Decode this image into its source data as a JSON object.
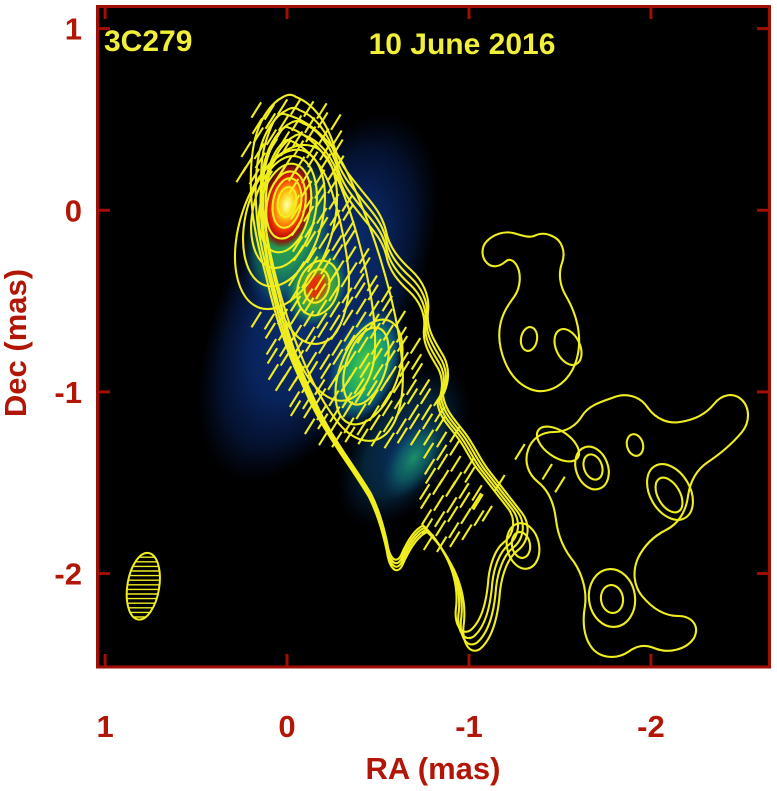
{
  "figure": {
    "source_name": "3C279",
    "epoch_label": "10 June 2016"
  },
  "axes": {
    "x": {
      "label": "RA (mas)",
      "tick_labels": [
        "1",
        "0",
        "-1",
        "-2"
      ],
      "tick_values": [
        1,
        0,
        -1,
        -2
      ],
      "lim": [
        1.05,
        -2.66
      ]
    },
    "y": {
      "label": "Dec (mas)",
      "tick_labels": [
        "1",
        "0",
        "-1",
        "-2"
      ],
      "tick_values": [
        1,
        0,
        -1,
        -2
      ],
      "lim": [
        1.13,
        -2.52
      ]
    }
  },
  "colors": {
    "page_background": "#ffffff",
    "plot_background": "#000000",
    "frame": "#a00e04",
    "axis_text": "#b21607",
    "annotation_text": "#f2ef38",
    "contour": "#f1ee1f",
    "colormap_peak": "#fff9a8",
    "colormap_high": "#ff7e06",
    "colormap_red": "#d31505",
    "colormap_green": "#2eb24a",
    "colormap_teal": "#14927c",
    "colormap_low": "#0c2e75"
  },
  "chart_data": {
    "type": "heatmap",
    "subtype": "VLBI total-intensity contour map with color intensity scale and linear-polarization EVPA ticks",
    "title": "3C279 — 10 June 2016",
    "xlabel": "RA (mas)",
    "ylabel": "Dec (mas)",
    "xlim": [
      1.05,
      -2.66
    ],
    "ylim": [
      1.13,
      -2.52
    ],
    "x_ticks": [
      1,
      0,
      -1,
      -2
    ],
    "y_ticks": [
      1,
      0,
      -1,
      -2
    ],
    "grid": false,
    "contours": {
      "color": "#f1ee1f",
      "n_levels": 14,
      "spacing": "logarithmic",
      "description": "Nested total-intensity contours; jet extends from core toward south-west (lower right in RA)"
    },
    "components": [
      {
        "id": "core",
        "ra": 0.0,
        "dec": 0.03,
        "appearance": "brightest peak, yellow-white core with orange-red halo"
      },
      {
        "id": "C1",
        "ra": -0.16,
        "dec": -0.42,
        "appearance": "secondary red knot ringed by green"
      },
      {
        "id": "C2",
        "ra": -0.43,
        "dec": -0.86,
        "appearance": "extended green-teal knot in navy envelope"
      }
    ],
    "jet_knots": [
      {
        "ra": -1.46,
        "dec": -0.38
      },
      {
        "ra": -1.33,
        "dec": -0.71
      },
      {
        "ra": -1.54,
        "dec": -0.75
      },
      {
        "ra": -1.68,
        "dec": -1.41
      },
      {
        "ra": -1.29,
        "dec": -1.84
      },
      {
        "ra": -1.91,
        "dec": -1.29
      },
      {
        "ra": -2.1,
        "dec": -1.56
      },
      {
        "ra": -1.79,
        "dec": -2.13
      }
    ],
    "polarization": {
      "tick_color": "#f1ee1f",
      "angle_deg": -58,
      "tick_len_mas": 0.1,
      "spacing_mas": 0.072,
      "band": [
        {
          "ra": -0.03,
          "dec": 0.4,
          "halfwidth_mas": 0.26
        },
        {
          "ra": -0.02,
          "dec": 0.03,
          "halfwidth_mas": 0.31
        },
        {
          "ra": -0.1,
          "dec": -0.37,
          "halfwidth_mas": 0.35
        },
        {
          "ra": -0.31,
          "dec": -0.81,
          "halfwidth_mas": 0.4
        },
        {
          "ra": -0.59,
          "dec": -1.25,
          "halfwidth_mas": 0.33
        },
        {
          "ra": -0.85,
          "dec": -1.61,
          "halfwidth_mas": 0.23
        }
      ],
      "extra_ticks": [
        {
          "ra": -1.04,
          "dec": -1.6
        },
        {
          "ra": -1.1,
          "dec": -1.67
        },
        {
          "ra": -1.17,
          "dec": -1.5
        },
        {
          "ra": -1.28,
          "dec": -1.33
        },
        {
          "ra": -1.43,
          "dec": -1.44
        },
        {
          "ra": -1.5,
          "dec": -1.51
        }
      ]
    },
    "beam": {
      "ra": 0.79,
      "dec": -2.07,
      "bmaj_mas": 0.37,
      "bmin_mas": 0.175,
      "pa_deg": 9,
      "style": "yellow hatched ellipse, lower-left corner"
    }
  }
}
